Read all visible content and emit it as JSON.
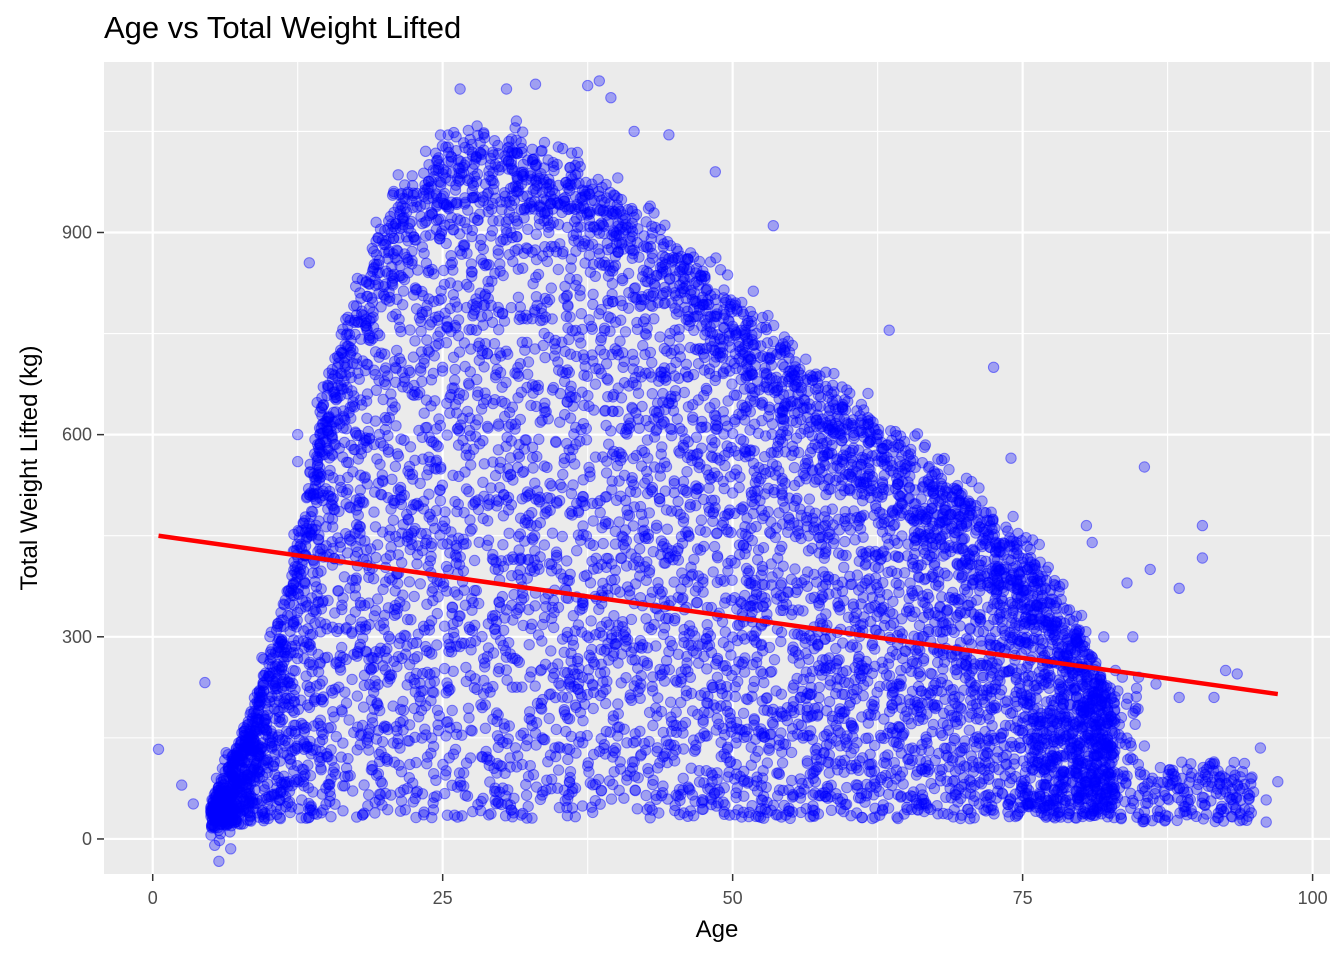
{
  "chart_data": {
    "type": "scatter",
    "title": "Age vs Total Weight Lifted",
    "xlabel": "Age",
    "ylabel": "Total Weight Lifted (kg)",
    "xlim": [
      -4.2,
      101.5
    ],
    "ylim": [
      -52,
      1153
    ],
    "x_ticks": [
      0,
      25,
      50,
      75,
      100
    ],
    "y_ticks": [
      0,
      300,
      600,
      900
    ],
    "grid": true,
    "legend": "none",
    "colors": {
      "points": "#0000ff",
      "trend": "#ff0000",
      "panel": "#ebebeb",
      "grid": "#ffffff"
    },
    "trend_line": {
      "x": [
        0.5,
        97
      ],
      "y": [
        450,
        215
      ]
    },
    "envelope": {
      "age": [
        5,
        7,
        9,
        11,
        13,
        14,
        15,
        17,
        19,
        21,
        23,
        25,
        27,
        29,
        31,
        33,
        35,
        37,
        39,
        41,
        43,
        45,
        47,
        50,
        53,
        56,
        59,
        62,
        65,
        68,
        71,
        74,
        77,
        80,
        83
      ],
      "upper": [
        55,
        130,
        210,
        340,
        480,
        600,
        680,
        780,
        880,
        950,
        990,
        1020,
        1030,
        1035,
        1030,
        1020,
        1005,
        990,
        970,
        940,
        910,
        880,
        850,
        810,
        760,
        710,
        660,
        620,
        580,
        540,
        500,
        450,
        390,
        310,
        200
      ],
      "lower": [
        15,
        20,
        25,
        30,
        30,
        30,
        30,
        30,
        30,
        30,
        30,
        30,
        30,
        30,
        30,
        30,
        30,
        30,
        30,
        30,
        30,
        30,
        30,
        30,
        30,
        30,
        30,
        30,
        30,
        30,
        30,
        30,
        30,
        30,
        40
      ]
    },
    "outliers": [
      [
        0.5,
        133
      ],
      [
        2.5,
        80
      ],
      [
        3.5,
        52
      ],
      [
        4.5,
        232
      ],
      [
        5.5,
        90
      ],
      [
        6.5,
        125
      ],
      [
        13.5,
        855
      ],
      [
        15.5,
        690
      ],
      [
        17.5,
        820
      ],
      [
        12.5,
        600
      ],
      [
        12.5,
        560
      ],
      [
        26.5,
        1113
      ],
      [
        30.5,
        1113
      ],
      [
        33,
        1120
      ],
      [
        37.5,
        1118
      ],
      [
        38.5,
        1125
      ],
      [
        39.5,
        1100
      ],
      [
        41.5,
        1050
      ],
      [
        44.5,
        1045
      ],
      [
        48.5,
        990
      ],
      [
        53.5,
        910
      ],
      [
        63.5,
        755
      ],
      [
        72.5,
        700
      ],
      [
        74,
        565
      ],
      [
        80.5,
        465
      ],
      [
        81,
        440
      ],
      [
        84,
        380
      ],
      [
        85.5,
        552
      ],
      [
        86,
        400
      ],
      [
        88.5,
        372
      ],
      [
        88.5,
        210
      ],
      [
        90.5,
        465
      ],
      [
        90.5,
        417
      ],
      [
        91.5,
        210
      ],
      [
        92.5,
        250
      ],
      [
        93.5,
        245
      ],
      [
        94,
        75
      ],
      [
        95.5,
        135
      ],
      [
        96,
        58
      ],
      [
        96,
        25
      ],
      [
        97,
        85
      ],
      [
        87.5,
        85
      ],
      [
        88.5,
        75
      ],
      [
        89.5,
        92
      ],
      [
        90.5,
        88
      ],
      [
        91.5,
        92
      ],
      [
        90.5,
        62
      ],
      [
        85.5,
        95
      ],
      [
        86.5,
        75
      ],
      [
        87.5,
        60
      ],
      [
        85.5,
        138
      ],
      [
        84.5,
        118
      ],
      [
        83.5,
        150
      ],
      [
        82,
        300
      ],
      [
        81.5,
        220
      ],
      [
        83,
        250
      ],
      [
        84.5,
        300
      ],
      [
        85,
        240
      ],
      [
        86.5,
        230
      ],
      [
        80.5,
        60
      ],
      [
        81.5,
        40
      ],
      [
        82.5,
        85
      ],
      [
        83.5,
        30
      ],
      [
        94.5,
        60
      ],
      [
        92.5,
        70
      ]
    ]
  }
}
